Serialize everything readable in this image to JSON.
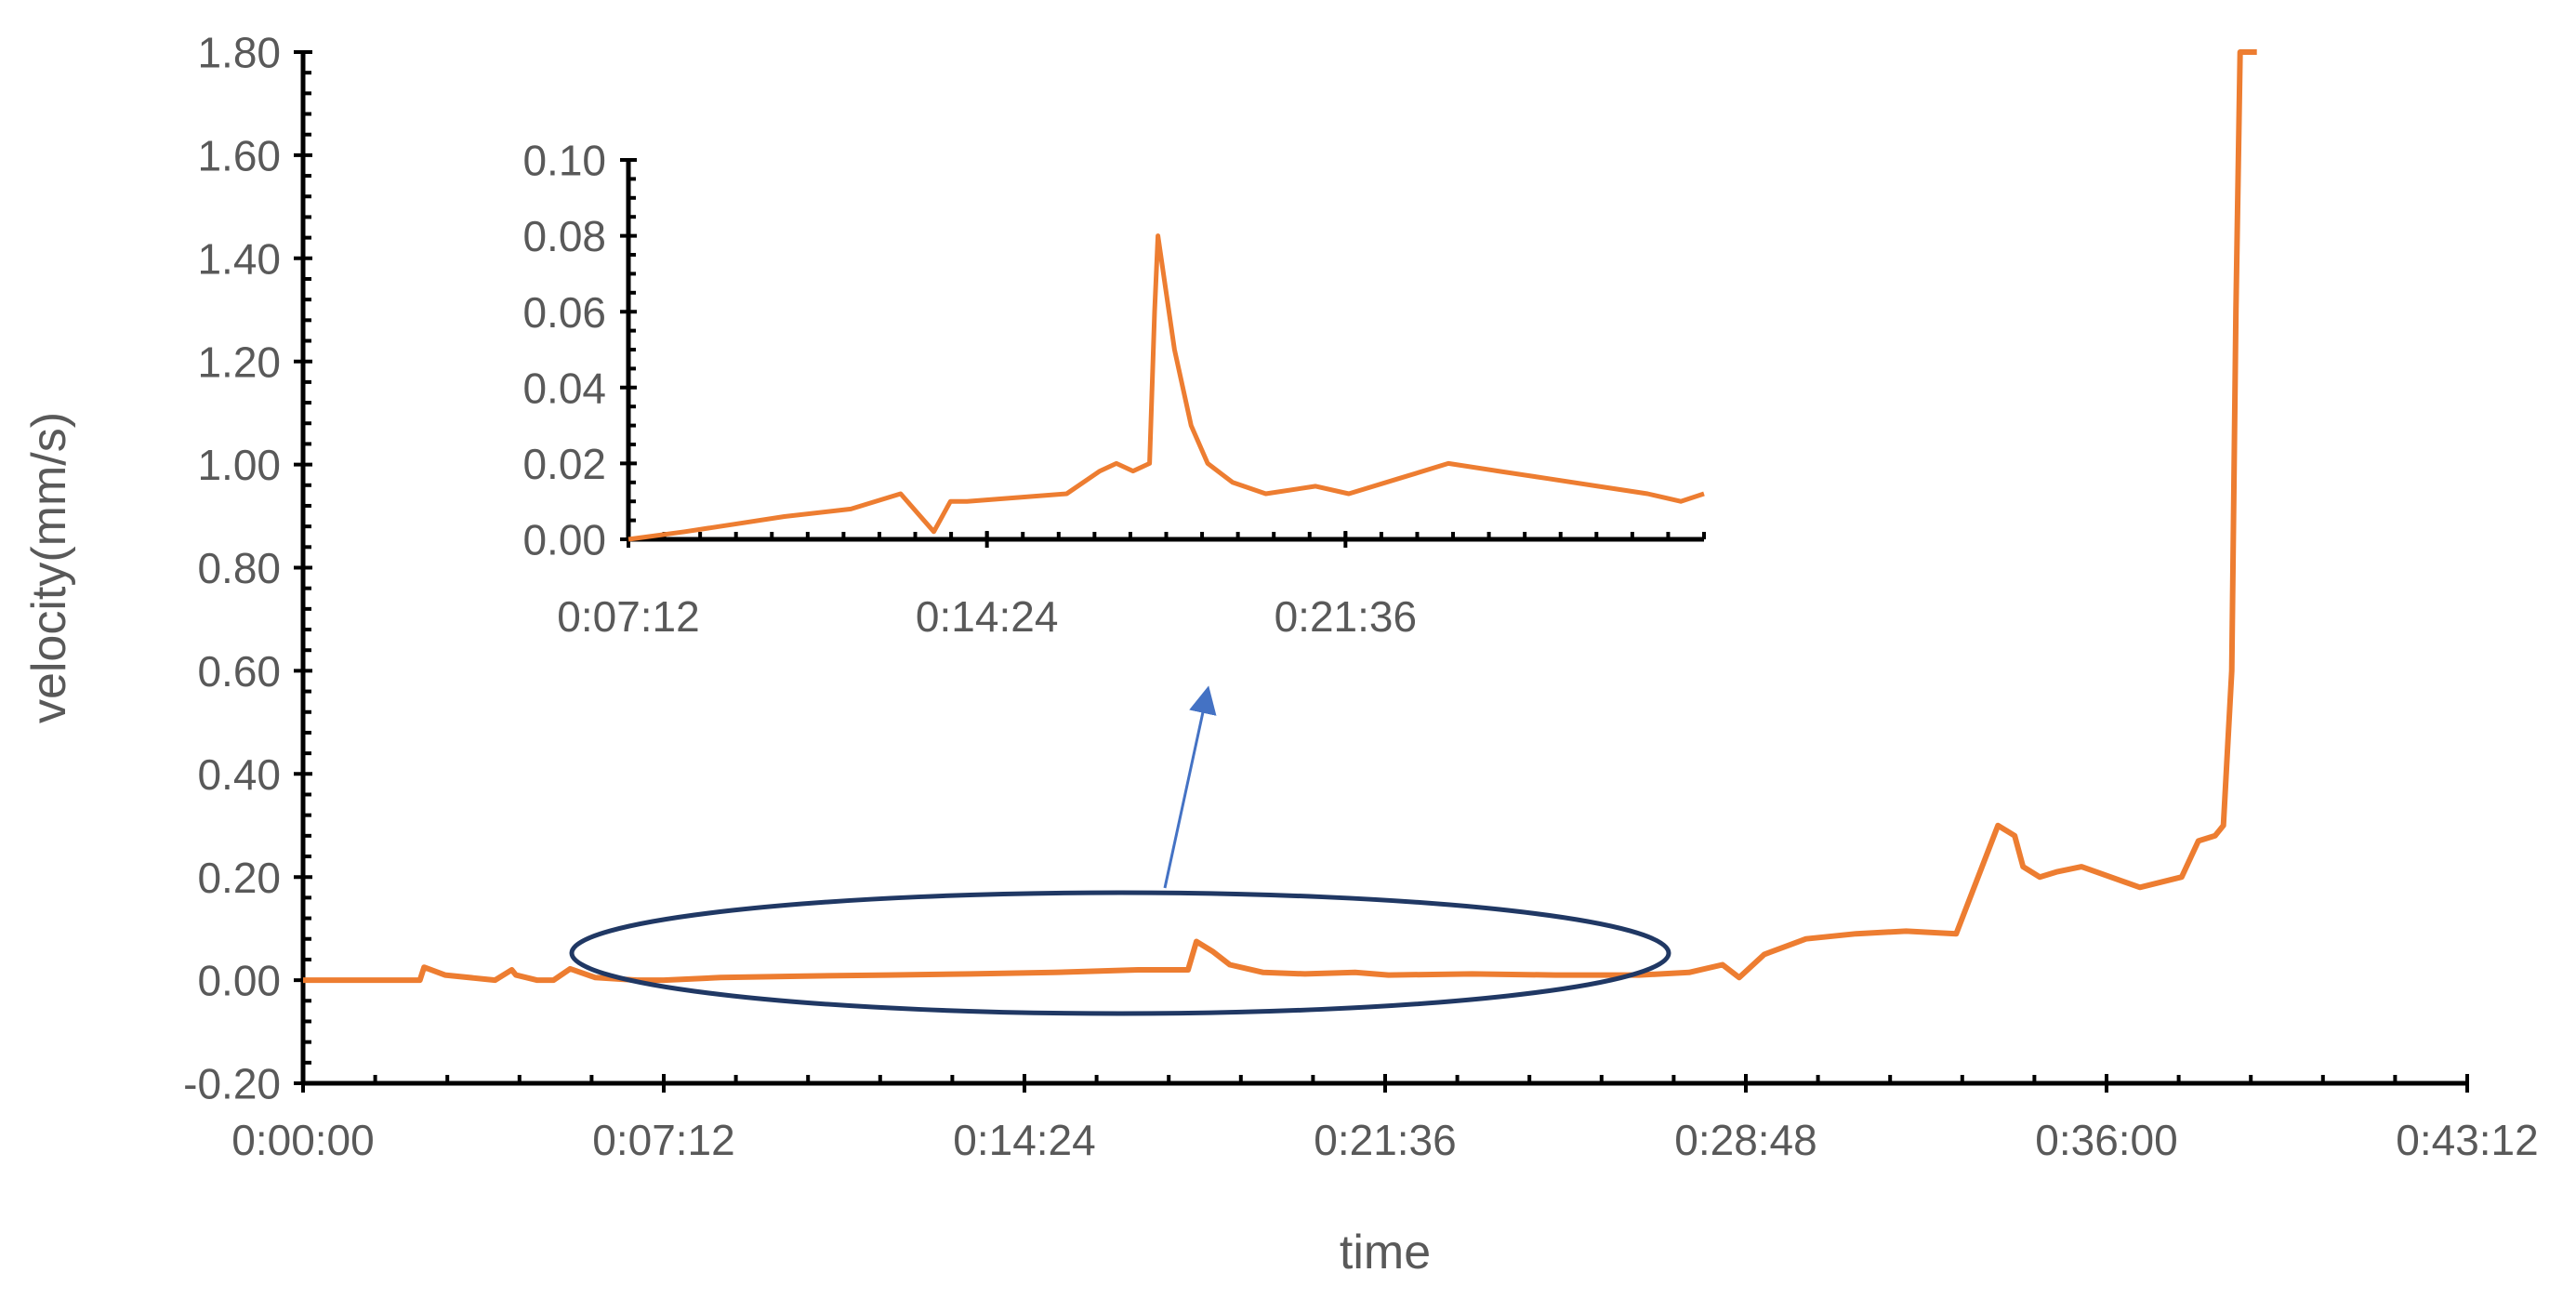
{
  "chart_data": [
    {
      "type": "line",
      "xlabel": "time",
      "ylabel": "velocity(mm/s)",
      "xlim_seconds": [
        0,
        2592
      ],
      "ylim": [
        -0.2,
        1.8
      ],
      "x_tick_labels": [
        "0:00:00",
        "0:07:12",
        "0:14:24",
        "0:21:36",
        "0:28:48",
        "0:36:00",
        "0:43:12"
      ],
      "y_tick_labels": [
        "-0.20",
        "0.00",
        "0.20",
        "0.40",
        "0.60",
        "0.80",
        "1.00",
        "1.20",
        "1.40",
        "1.60",
        "1.80"
      ],
      "series": [
        {
          "color": "#ED7D31",
          "x_seconds": [
            0,
            60,
            120,
            140,
            145,
            170,
            230,
            250,
            255,
            280,
            300,
            320,
            350,
            400,
            432,
            500,
            600,
            700,
            800,
            900,
            1000,
            1060,
            1070,
            1090,
            1110,
            1150,
            1200,
            1260,
            1300,
            1400,
            1500,
            1600,
            1660,
            1700,
            1720,
            1750,
            1800,
            1860,
            1920,
            1980,
            2030,
            2050,
            2060,
            2080,
            2100,
            2130,
            2200,
            2250,
            2270,
            2290,
            2300,
            2310,
            2315,
            2320,
            2330,
            2340
          ],
          "values": [
            0.0,
            0.0,
            0.0,
            0.0,
            0.025,
            0.01,
            0.0,
            0.02,
            0.01,
            0.0,
            0.0,
            0.022,
            0.005,
            0.0,
            0.0,
            0.005,
            0.008,
            0.01,
            0.012,
            0.015,
            0.02,
            0.02,
            0.075,
            0.055,
            0.03,
            0.015,
            0.012,
            0.015,
            0.01,
            0.012,
            0.01,
            0.01,
            0.015,
            0.03,
            0.005,
            0.05,
            0.08,
            0.09,
            0.095,
            0.09,
            0.3,
            0.28,
            0.22,
            0.2,
            0.21,
            0.22,
            0.18,
            0.2,
            0.27,
            0.28,
            0.3,
            0.6,
            1.3,
            1.8,
            1.8,
            1.8
          ]
        }
      ]
    },
    {
      "type": "line",
      "xlim_seconds": [
        432,
        1728
      ],
      "ylim": [
        0,
        0.1
      ],
      "x_tick_labels": [
        "0:07:12",
        "0:14:24",
        "0:21:36"
      ],
      "y_tick_labels": [
        "0.00",
        "0.02",
        "0.04",
        "0.06",
        "0.08",
        "0.10"
      ],
      "series": [
        {
          "color": "#ED7D31",
          "x_seconds": [
            432,
            500,
            560,
            620,
            700,
            760,
            800,
            820,
            840,
            900,
            960,
            1000,
            1020,
            1040,
            1060,
            1066,
            1070,
            1080,
            1090,
            1110,
            1130,
            1160,
            1200,
            1260,
            1300,
            1360,
            1420,
            1480,
            1540,
            1600,
            1660,
            1700,
            1728
          ],
          "values": [
            0.0,
            0.002,
            0.004,
            0.006,
            0.008,
            0.012,
            0.002,
            0.01,
            0.01,
            0.011,
            0.012,
            0.018,
            0.02,
            0.018,
            0.02,
            0.06,
            0.08,
            0.065,
            0.05,
            0.03,
            0.02,
            0.015,
            0.012,
            0.014,
            0.012,
            0.016,
            0.02,
            0.018,
            0.016,
            0.014,
            0.012,
            0.01,
            0.012
          ]
        }
      ]
    }
  ],
  "annotation": {
    "ellipse_color": "#203864",
    "arrow_color": "#4472C4"
  }
}
